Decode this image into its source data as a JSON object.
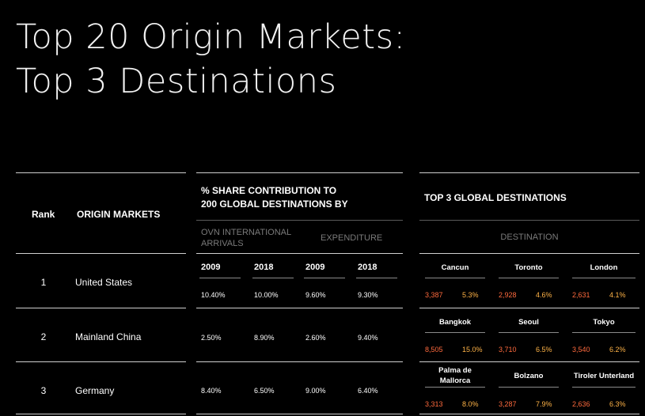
{
  "title": {
    "line1": "Top 20 Origin Markets:",
    "line2": "Top 3 Destinations"
  },
  "headers": {
    "rank": "Rank",
    "origin": "ORIGIN MARKETS",
    "share_line1": "% SHARE CONTRIBUTION TO",
    "share_line2": "200 GLOBAL DESTINATIONS BY",
    "ovn_line1": "OVN INTERNATIONAL",
    "ovn_line2": "ARRIVALS",
    "expenditure": "EXPENDITURE",
    "top3": "TOP 3 GLOBAL DESTINATIONS",
    "destination": "DESTINATION",
    "years": [
      "2009",
      "2018",
      "2009",
      "2018"
    ]
  },
  "rows": [
    {
      "rank": "1",
      "market": "United States",
      "values": [
        "10.40%",
        "10.00%",
        "9.60%",
        "9.30%"
      ],
      "destinations": [
        {
          "name1": "Cancun",
          "name2": "",
          "v1": "3,387",
          "v2": "5.3%"
        },
        {
          "name1": "Toronto",
          "name2": "",
          "v1": "2,928",
          "v2": "4.6%"
        },
        {
          "name1": "London",
          "name2": "",
          "v1": "2,631",
          "v2": "4.1%"
        }
      ]
    },
    {
      "rank": "2",
      "market": "Mainland China",
      "values": [
        "2.50%",
        "8.90%",
        "2.60%",
        "9.40%"
      ],
      "destinations": [
        {
          "name1": "Bangkok",
          "name2": "",
          "v1": "8,505",
          "v2": "15.0%"
        },
        {
          "name1": "Seoul",
          "name2": "",
          "v1": "3,710",
          "v2": "6.5%"
        },
        {
          "name1": "Tokyo",
          "name2": "",
          "v1": "3,540",
          "v2": "6.2%"
        }
      ]
    },
    {
      "rank": "3",
      "market": "Germany",
      "values": [
        "8.40%",
        "6.50%",
        "9.00%",
        "6.40%"
      ],
      "destinations": [
        {
          "name1": "Palma de",
          "name2": "Mallorca",
          "v1": "3,313",
          "v2": "8.0%"
        },
        {
          "name1": "Bolzano",
          "name2": "",
          "v1": "3,287",
          "v2": "7.9%"
        },
        {
          "name1": "Tiroler Unterland",
          "name2": "",
          "v1": "2,636",
          "v2": "6.3%"
        }
      ]
    }
  ],
  "colors": {
    "background": "#000000",
    "value_primary": "#ff6a3d",
    "value_secondary": "#ffb347"
  }
}
